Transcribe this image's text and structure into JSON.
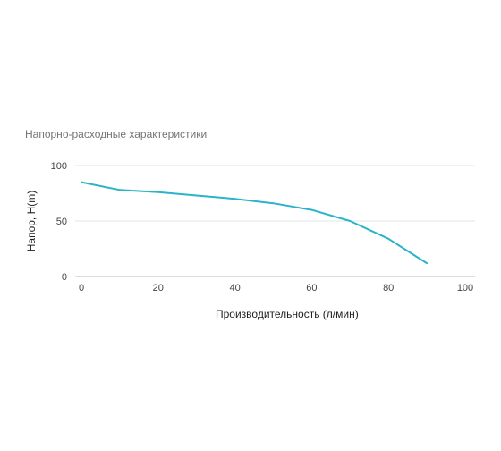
{
  "chart_data": {
    "type": "line",
    "title": "Напорно-расходные характеристики",
    "xlabel": "Производительность (л/мин)",
    "ylabel": "Напор, H(m)",
    "xlim": [
      0,
      100
    ],
    "ylim": [
      0,
      100
    ],
    "xticks": [
      "0",
      "20",
      "40",
      "60",
      "80",
      "100"
    ],
    "yticks": [
      "0",
      "50",
      "100"
    ],
    "grid": true,
    "series": [
      {
        "x": [
          0,
          10,
          20,
          30,
          40,
          50,
          60,
          70,
          80,
          85,
          90
        ],
        "y": [
          85,
          78,
          76,
          73,
          70,
          66,
          60,
          50,
          34,
          23,
          12
        ]
      }
    ],
    "colors": {
      "line": "#2bb3c9",
      "grid": "#e6e6e6",
      "axis": "#bdbdbd"
    }
  }
}
